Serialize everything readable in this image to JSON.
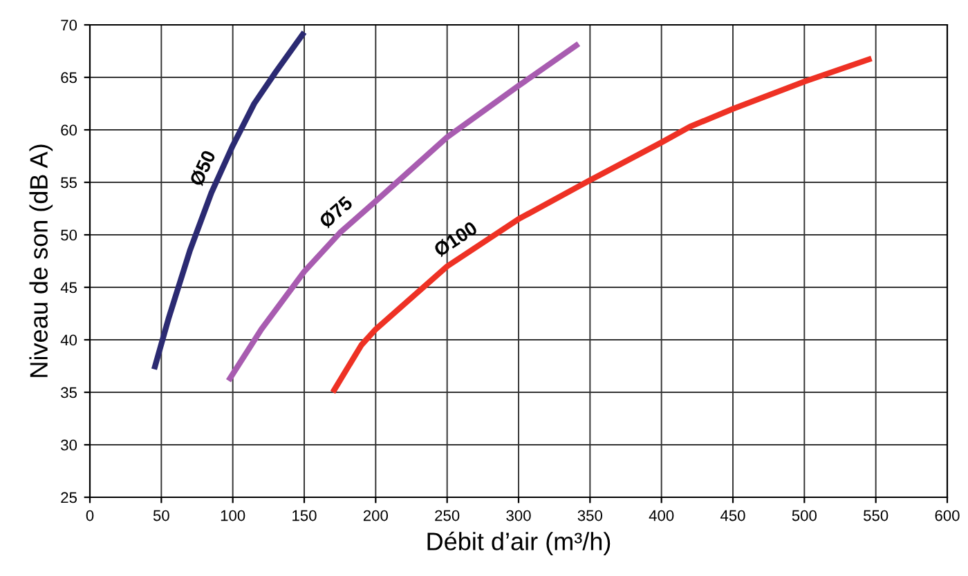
{
  "chart_data": {
    "type": "line",
    "xlabel": "Débit d’air (m³/h)",
    "ylabel": "Niveau de son (dB A)",
    "xlim": [
      0,
      600
    ],
    "xticks": [
      0,
      50,
      100,
      150,
      200,
      250,
      300,
      350,
      400,
      450,
      500,
      550,
      600
    ],
    "ylim": [
      25,
      70
    ],
    "yticks": [
      25,
      30,
      35,
      40,
      45,
      50,
      55,
      60,
      65,
      70
    ],
    "grid": true,
    "marker": "none",
    "line_style": "solid",
    "series": [
      {
        "name": "Ø50",
        "color": "#2b2a72",
        "x": [
          45,
          55,
          70,
          85,
          100,
          115,
          130,
          150
        ],
        "values": [
          37.2,
          42,
          48.5,
          54,
          58.5,
          62.5,
          65.5,
          69.3
        ]
      },
      {
        "name": "Ø75",
        "color": "#a85cb0",
        "x": [
          97,
          120,
          150,
          175,
          200,
          250,
          300,
          342
        ],
        "values": [
          36.1,
          41,
          46.5,
          50.2,
          53.2,
          59.3,
          64.2,
          68.2
        ]
      },
      {
        "name": "Ø100",
        "color": "#ee3124",
        "x": [
          170,
          190,
          200,
          250,
          300,
          350,
          400,
          420,
          450,
          500,
          547
        ],
        "values": [
          35,
          39.5,
          41,
          47,
          51.5,
          55.2,
          58.8,
          60.3,
          62,
          64.6,
          66.8
        ]
      }
    ]
  }
}
